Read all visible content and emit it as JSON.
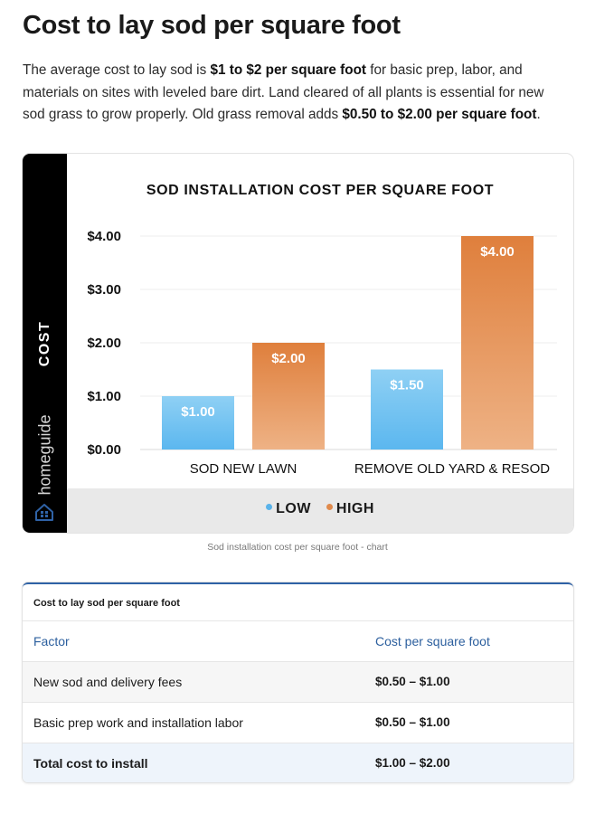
{
  "page": {
    "title": "Cost to lay sod per square foot",
    "intro": {
      "t1": "The average cost to lay sod is ",
      "b1": "$1 to $2 per square foot",
      "t2": " for basic prep, labor, and materials on sites with leveled bare dirt. Land cleared of all plants is essential for new sod grass to grow properly. Old grass removal adds ",
      "b2": "$0.50 to $2.00 per square foot",
      "t3": "."
    },
    "caption": "Sod installation cost per square foot - chart"
  },
  "chart_data": {
    "type": "bar",
    "title": "SOD INSTALLATION COST PER SQUARE FOOT",
    "ylabel": "COST",
    "brand": "homeguide",
    "categories": [
      "SOD NEW LAWN",
      "REMOVE OLD YARD & RESOD"
    ],
    "series": [
      {
        "name": "LOW",
        "values": [
          1.0,
          1.5
        ],
        "labels": [
          "$1.00",
          "$1.50"
        ],
        "color_top": "#8fd0f4",
        "color_bottom": "#5bb7ef",
        "legend_color": "#5ab3ea"
      },
      {
        "name": "HIGH",
        "values": [
          2.0,
          4.0
        ],
        "labels": [
          "$2.00",
          "$4.00"
        ],
        "color_top": "#df7f3c",
        "color_bottom": "#eeb285",
        "legend_color": "#e08a4c"
      }
    ],
    "yticks": [
      0,
      1,
      2,
      3,
      4
    ],
    "ytick_labels": [
      "$0.00",
      "$1.00",
      "$2.00",
      "$3.00",
      "$4.00"
    ],
    "ylim": [
      0,
      4
    ],
    "grid": true,
    "legend_position": "bottom"
  },
  "table": {
    "caption": "Cost to lay sod per square foot",
    "headers": [
      "Factor",
      "Cost per square foot"
    ],
    "rows": [
      [
        "New sod and delivery fees",
        "$0.50 – $1.00"
      ],
      [
        "Basic prep work and installation labor",
        "$0.50 – $1.00"
      ],
      [
        "Total cost to install",
        "$1.00 – $2.00"
      ]
    ]
  }
}
